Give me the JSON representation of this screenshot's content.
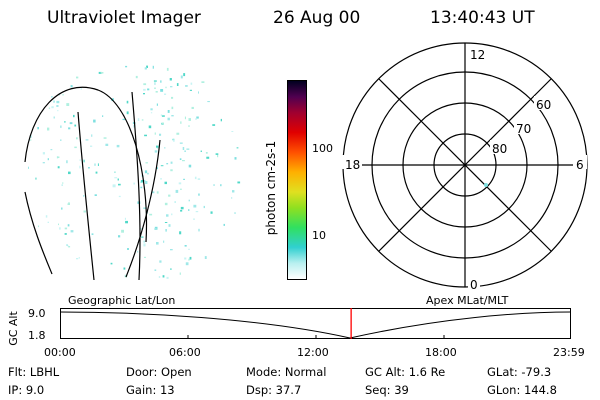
{
  "header": {
    "instrument": "Ultraviolet Imager",
    "date": "26 Aug 00",
    "time": "13:40:43 UT"
  },
  "colorbar": {
    "unit_label": "photon cm-2s-1",
    "ticks": [
      "100",
      "10"
    ]
  },
  "polar_plot": {
    "mlt_labels": {
      "top": "12",
      "left": "18",
      "right": "6",
      "bottom": "0"
    },
    "lat_labels": [
      "60",
      "70",
      "80"
    ]
  },
  "timeline": {
    "left_title": "Geographic Lat/Lon",
    "right_title": "Apex MLat/MLT",
    "axis_label": "GC Alt",
    "y_ticks": [
      "9.0",
      "1.8"
    ],
    "x_ticks": [
      "00:00",
      "06:00",
      "12:00",
      "18:00",
      "23:59"
    ],
    "current_time_fraction": 0.57
  },
  "info": {
    "row1": {
      "flt": "Flt: LBHL",
      "door": "Door: Open",
      "mode": "Mode: Normal",
      "gcalt": "GC Alt: 1.6 Re",
      "glat": "GLat: -79.3"
    },
    "row2": {
      "ip": "IP:  9.0",
      "gain": "Gain: 13",
      "dsp": "Dsp:   37.7",
      "seq": "Seq: 39",
      "glon": "GLon: 144.8"
    }
  },
  "colors": {
    "timeline_marker": "#ff0000",
    "speckle": "#7fe0e0"
  }
}
